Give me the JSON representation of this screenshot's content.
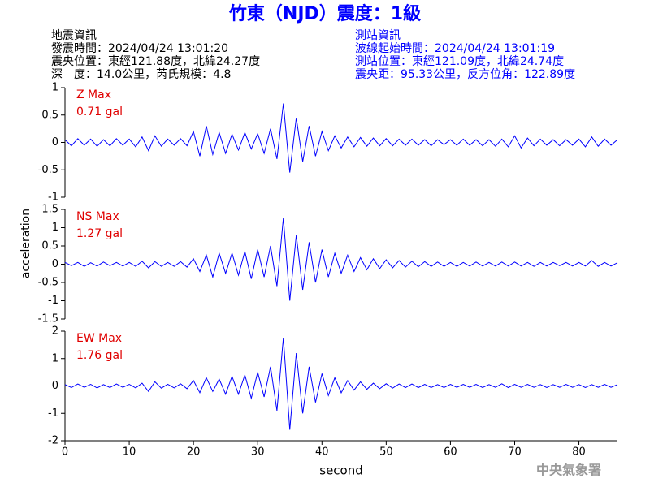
{
  "title": "竹東（NJD）震度：1級",
  "station_left": [
    "地震資訊",
    "發震時間：2024/04/24 13:01:20",
    "震央位置：東經121.88度，北緯24.27度",
    "深　度：14.0公里，芮氏規模：4.8"
  ],
  "station_right": [
    "測站資訊",
    "波線起始時間：2024/04/24 13:01:19",
    "測站位置：東經121.09度，北緯24.74度",
    "震央距：95.33公里，反方位角：122.89度"
  ],
  "y_label": "acceleration",
  "watermark": "中央氣象署",
  "chart_data": [
    {
      "type": "line",
      "annotation": [
        "Z Max",
        "0.71 gal"
      ],
      "xlim": [
        0,
        86
      ],
      "ylim": [
        -1,
        1
      ],
      "yticks": [
        -1,
        -0.5,
        0,
        0.5,
        1
      ],
      "x": [
        0,
        1,
        2,
        3,
        4,
        5,
        6,
        7,
        8,
        9,
        10,
        11,
        12,
        13,
        14,
        15,
        16,
        17,
        18,
        19,
        20,
        21,
        22,
        23,
        24,
        25,
        26,
        27,
        28,
        29,
        30,
        31,
        32,
        33,
        34,
        35,
        36,
        37,
        38,
        39,
        40,
        41,
        42,
        43,
        44,
        45,
        46,
        47,
        48,
        49,
        50,
        51,
        52,
        53,
        54,
        55,
        56,
        57,
        58,
        59,
        60,
        61,
        62,
        63,
        64,
        65,
        66,
        67,
        68,
        69,
        70,
        71,
        72,
        73,
        74,
        75,
        76,
        77,
        78,
        79,
        80,
        81,
        82,
        83,
        84,
        85,
        86
      ],
      "series": [
        {
          "color": "#0000ff",
          "values": [
            0.05,
            -0.06,
            0.07,
            -0.05,
            0.06,
            -0.07,
            0.05,
            -0.06,
            0.07,
            -0.05,
            0.06,
            -0.08,
            0.1,
            -0.15,
            0.12,
            -0.07,
            0.06,
            -0.05,
            0.07,
            -0.06,
            0.2,
            -0.25,
            0.3,
            -0.22,
            0.18,
            -0.2,
            0.15,
            -0.14,
            0.18,
            -0.12,
            0.16,
            -0.2,
            0.25,
            -0.3,
            0.71,
            -0.55,
            0.45,
            -0.35,
            0.3,
            -0.25,
            0.2,
            -0.15,
            0.12,
            -0.1,
            0.1,
            -0.08,
            0.09,
            -0.07,
            0.08,
            -0.06,
            0.07,
            -0.06,
            0.06,
            -0.05,
            0.06,
            -0.05,
            0.05,
            -0.06,
            0.05,
            -0.04,
            0.05,
            -0.05,
            0.06,
            -0.05,
            0.05,
            -0.06,
            0.05,
            -0.07,
            0.06,
            -0.08,
            0.12,
            -0.1,
            0.08,
            -0.06,
            0.06,
            -0.05,
            0.05,
            -0.06,
            0.05,
            -0.05,
            0.06,
            -0.08,
            0.1,
            -0.07,
            0.06,
            -0.05,
            0.05
          ]
        }
      ]
    },
    {
      "type": "line",
      "annotation": [
        "NS Max",
        "1.27 gal"
      ],
      "xlim": [
        0,
        86
      ],
      "ylim": [
        -1.5,
        1.5
      ],
      "yticks": [
        -1.5,
        -1,
        -0.5,
        0,
        0.5,
        1,
        1.5
      ],
      "x": [
        0,
        1,
        2,
        3,
        4,
        5,
        6,
        7,
        8,
        9,
        10,
        11,
        12,
        13,
        14,
        15,
        16,
        17,
        18,
        19,
        20,
        21,
        22,
        23,
        24,
        25,
        26,
        27,
        28,
        29,
        30,
        31,
        32,
        33,
        34,
        35,
        36,
        37,
        38,
        39,
        40,
        41,
        42,
        43,
        44,
        45,
        46,
        47,
        48,
        49,
        50,
        51,
        52,
        53,
        54,
        55,
        56,
        57,
        58,
        59,
        60,
        61,
        62,
        63,
        64,
        65,
        66,
        67,
        68,
        69,
        70,
        71,
        72,
        73,
        74,
        75,
        76,
        77,
        78,
        79,
        80,
        81,
        82,
        83,
        84,
        85,
        86
      ],
      "series": [
        {
          "color": "#0000ff",
          "values": [
            0.05,
            -0.04,
            0.05,
            -0.06,
            0.04,
            -0.05,
            0.06,
            -0.04,
            0.05,
            -0.05,
            0.05,
            -0.06,
            0.08,
            -0.1,
            0.07,
            -0.06,
            0.05,
            -0.06,
            0.07,
            -0.08,
            0.15,
            -0.2,
            0.25,
            -0.35,
            0.3,
            -0.25,
            0.3,
            -0.3,
            0.35,
            -0.4,
            0.4,
            -0.35,
            0.5,
            -0.6,
            1.27,
            -1.0,
            0.8,
            -0.7,
            0.6,
            -0.5,
            0.4,
            -0.35,
            0.3,
            -0.25,
            0.25,
            -0.2,
            0.18,
            -0.15,
            0.15,
            -0.12,
            0.12,
            -0.1,
            0.1,
            -0.08,
            0.08,
            -0.07,
            0.07,
            -0.06,
            0.06,
            -0.06,
            0.05,
            -0.06,
            0.05,
            -0.05,
            0.06,
            -0.05,
            0.05,
            -0.05,
            0.06,
            -0.05,
            0.06,
            -0.05,
            0.05,
            -0.06,
            0.05,
            -0.05,
            0.05,
            -0.04,
            0.05,
            -0.05,
            0.05,
            -0.05,
            0.1,
            -0.06,
            0.05,
            -0.05,
            0.04
          ]
        }
      ]
    },
    {
      "type": "line",
      "annotation": [
        "EW Max",
        "1.76 gal"
      ],
      "xlim": [
        0,
        86
      ],
      "ylim": [
        -2,
        2
      ],
      "yticks": [
        -2,
        -1,
        0,
        1,
        2
      ],
      "xticks": [
        0,
        10,
        20,
        30,
        40,
        50,
        60,
        70,
        80
      ],
      "x_label": "second",
      "x": [
        0,
        1,
        2,
        3,
        4,
        5,
        6,
        7,
        8,
        9,
        10,
        11,
        12,
        13,
        14,
        15,
        16,
        17,
        18,
        19,
        20,
        21,
        22,
        23,
        24,
        25,
        26,
        27,
        28,
        29,
        30,
        31,
        32,
        33,
        34,
        35,
        36,
        37,
        38,
        39,
        40,
        41,
        42,
        43,
        44,
        45,
        46,
        47,
        48,
        49,
        50,
        51,
        52,
        53,
        54,
        55,
        56,
        57,
        58,
        59,
        60,
        61,
        62,
        63,
        64,
        65,
        66,
        67,
        68,
        69,
        70,
        71,
        72,
        73,
        74,
        75,
        76,
        77,
        78,
        79,
        80,
        81,
        82,
        83,
        84,
        85,
        86
      ],
      "series": [
        {
          "color": "#0000ff",
          "values": [
            0.05,
            -0.06,
            0.07,
            -0.05,
            0.06,
            -0.07,
            0.05,
            -0.06,
            0.07,
            -0.05,
            0.06,
            -0.07,
            0.1,
            -0.2,
            0.15,
            -0.08,
            0.06,
            -0.07,
            0.08,
            -0.1,
            0.2,
            -0.25,
            0.3,
            -0.2,
            0.25,
            -0.3,
            0.35,
            -0.3,
            0.4,
            -0.45,
            0.5,
            -0.4,
            0.7,
            -0.9,
            1.76,
            -1.6,
            1.2,
            -1.0,
            0.7,
            -0.6,
            0.45,
            -0.35,
            0.3,
            -0.25,
            0.2,
            -0.15,
            0.15,
            -0.12,
            0.1,
            -0.1,
            0.08,
            -0.08,
            0.07,
            -0.06,
            0.07,
            -0.06,
            0.06,
            -0.06,
            0.05,
            -0.06,
            0.06,
            -0.05,
            0.06,
            -0.05,
            0.06,
            -0.06,
            0.05,
            -0.05,
            0.08,
            -0.06,
            0.06,
            -0.05,
            0.06,
            -0.05,
            0.05,
            -0.06,
            0.05,
            -0.05,
            0.06,
            -0.05,
            0.05,
            -0.06,
            0.05,
            -0.05,
            0.06,
            -0.05,
            0.05
          ]
        }
      ]
    }
  ]
}
